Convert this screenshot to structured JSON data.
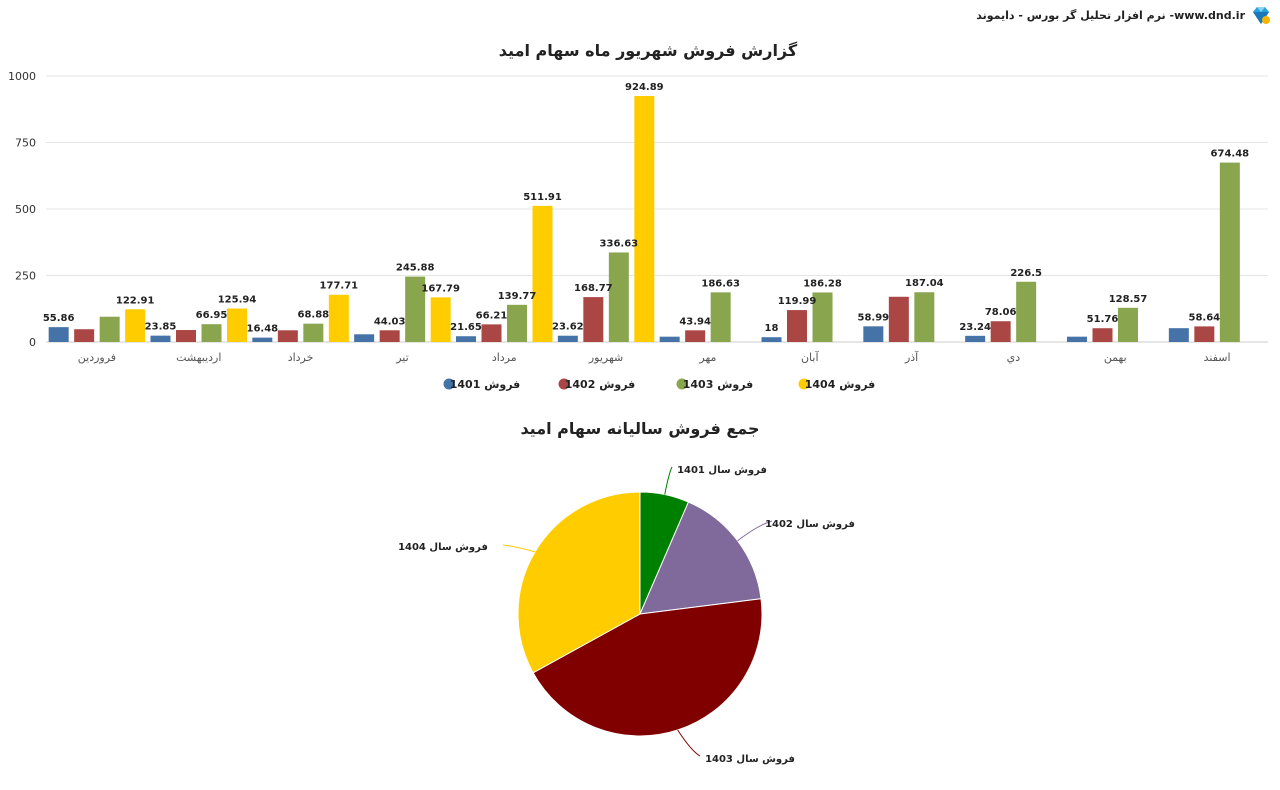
{
  "header": {
    "brand_text": "نرم افزار تحلیل گر بورس - دایموند -www.dnd.ir",
    "logo_icon": "diamond-icon"
  },
  "chart_data": [
    {
      "type": "bar",
      "title": "گزارش فروش شهریور ماه سهام امید",
      "categories": [
        "فروردین",
        "اردیبهشت",
        "خرداد",
        "تیر",
        "مرداد",
        "شهریور",
        "مهر",
        "آبان",
        "آذر",
        "دي",
        "بهمن",
        "اسفند"
      ],
      "series": [
        {
          "name": "فروش 1401",
          "color": "#4572A7",
          "values": [
            55.86,
            23.85,
            16.48,
            29,
            21.65,
            23.62,
            20,
            18,
            58.99,
            23.24,
            20,
            52
          ],
          "labels": [
            "55.86",
            "23.85",
            "16.48",
            "",
            "21.65",
            "23.62",
            "",
            "18",
            "58.99",
            "23.24",
            "",
            ""
          ]
        },
        {
          "name": "فروش 1402",
          "color": "#AA4643",
          "values": [
            48,
            45,
            44,
            44.03,
            66.21,
            168.77,
            43.94,
            119.99,
            170,
            78.06,
            51.76,
            58.64
          ],
          "labels": [
            "",
            "",
            "",
            "44.03",
            "66.21",
            "168.77",
            "43.94",
            "119.99",
            "",
            "78.06",
            "51.76",
            "58.64"
          ]
        },
        {
          "name": "فروش 1403",
          "color": "#89A54E",
          "values": [
            95,
            66.95,
            68.88,
            245.88,
            139.77,
            336.63,
            186.63,
            186.28,
            187.04,
            226.5,
            128.57,
            674.48
          ],
          "labels": [
            "",
            "66.95",
            "68.88",
            "245.88",
            "139.77",
            "336.63",
            "186.63",
            "186.28",
            "187.04",
            "226.5",
            "128.57",
            "674.48"
          ]
        },
        {
          "name": "فروش 1404",
          "color": "#FFCC00",
          "values": [
            122.91,
            125.94,
            177.71,
            167.79,
            511.91,
            924.89,
            null,
            null,
            null,
            null,
            null,
            null
          ],
          "labels": [
            "122.91",
            "125.94",
            "177.71",
            "167.79",
            "511.91",
            "924.89",
            "",
            "",
            "",
            "",
            "",
            ""
          ]
        }
      ],
      "yticks": [
        "0",
        "250",
        "500",
        "750",
        "1000"
      ],
      "ylim": [
        0,
        1000
      ],
      "grid": true,
      "legend_position": "bottom-center"
    },
    {
      "type": "pie",
      "title": "جمع فروش سالیانه سهام امید",
      "slices": [
        {
          "label": "فروش سال 1401",
          "value": 6.5,
          "color": "#008000"
        },
        {
          "label": "فروش سال 1402",
          "value": 16.5,
          "color": "#806A9C"
        },
        {
          "label": "فروش سال 1403",
          "value": 44,
          "color": "#800000"
        },
        {
          "label": "فروش سال 1404",
          "value": 33,
          "color": "#FFCC00"
        }
      ]
    }
  ]
}
